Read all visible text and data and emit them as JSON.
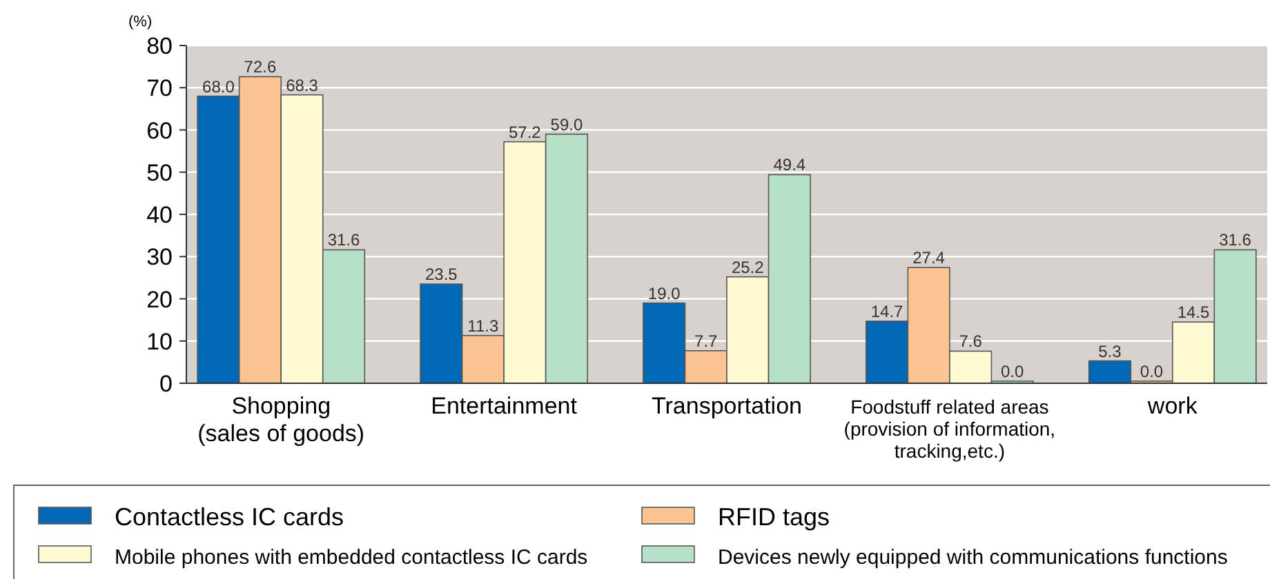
{
  "chart_data": {
    "type": "bar",
    "ylabel": "(%)",
    "categories": [
      "Shopping\n(sales of goods)",
      "Entertainment",
      "Transportation",
      "Foodstuff related areas\n(provision of information,\ntracking,etc.)",
      "work"
    ],
    "series": [
      {
        "name": "Contactless IC cards",
        "color": "#0068b7",
        "values": [
          68,
          23.5,
          19,
          14.7,
          5.3
        ],
        "value_labels": [
          "68.0",
          "23.5",
          "19.0",
          "14.7",
          "5.3"
        ]
      },
      {
        "name": "RFID tags",
        "color": "#fbc491",
        "values": [
          72.6,
          11.3,
          7.7,
          27.4,
          0
        ],
        "value_labels": [
          "72.6",
          "11.3",
          "7.7",
          "27.4",
          "0.0"
        ]
      },
      {
        "name": "Mobile phones with embedded contactless IC cards",
        "color": "#fffad4",
        "values": [
          68.3,
          57.2,
          25.2,
          7.6,
          14.5
        ],
        "value_labels": [
          "68.3",
          "57.2",
          "25.2",
          "7.6",
          "14.5"
        ]
      },
      {
        "name": "Devices newly equipped with communications functions",
        "color": "#b6e0c8",
        "values": [
          31.6,
          59,
          49.4,
          0,
          31.6
        ],
        "value_labels": [
          "31.6",
          "59.0",
          "49.4",
          "0.0",
          "31.6"
        ]
      }
    ],
    "ylim": [
      0,
      80
    ],
    "yticks": [
      0,
      10,
      20,
      30,
      40,
      50,
      60,
      70,
      80
    ],
    "grid": "y",
    "legend": "bottom"
  }
}
